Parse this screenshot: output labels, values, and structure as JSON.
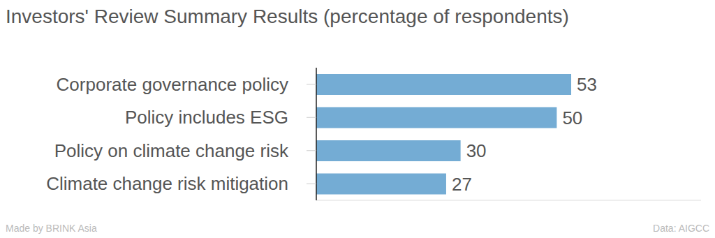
{
  "chart_data": {
    "type": "bar",
    "orientation": "horizontal",
    "title": "Investors' Review Summary Results (percentage of respondents)",
    "categories": [
      "Corporate governance policy",
      "Policy includes ESG",
      "Policy on climate change risk",
      "Climate change risk mitigation"
    ],
    "values": [
      53,
      50,
      30,
      27
    ],
    "color": "#74acd4",
    "xlim": [
      0,
      80
    ],
    "xticks": [],
    "tick_labels": "y",
    "data_labels": true,
    "grid": false,
    "annotations": [
      "Made by BRINK Asia",
      "Data: AIGCC"
    ]
  }
}
